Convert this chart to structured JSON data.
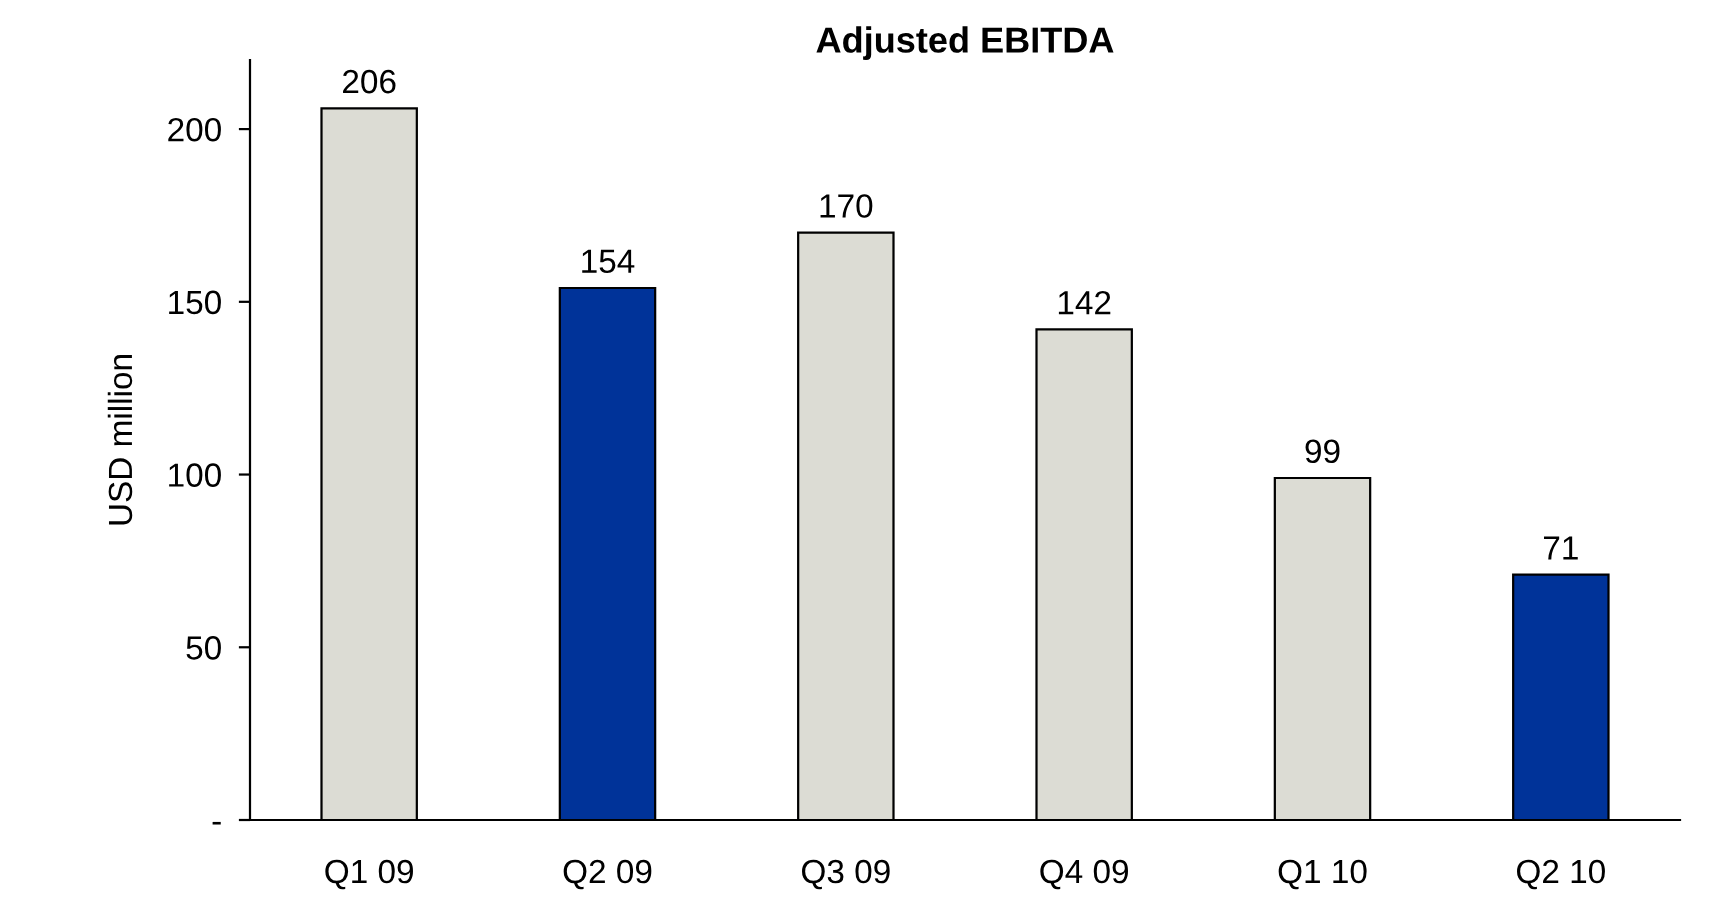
{
  "chart_data": {
    "type": "bar",
    "title": "Adjusted EBITDA",
    "ylabel": "USD million",
    "categories": [
      "Q1 09",
      "Q2 09",
      "Q3 09",
      "Q4 09",
      "Q1 10",
      "Q2 10"
    ],
    "values": [
      206,
      154,
      170,
      142,
      99,
      71
    ],
    "colors": [
      "#dcdcd4",
      "#003399",
      "#dcdcd4",
      "#dcdcd4",
      "#dcdcd4",
      "#003399"
    ],
    "ylim": [
      0,
      220
    ],
    "yticks": [
      {
        "value": 0,
        "label": "-"
      },
      50,
      100,
      150,
      200
    ],
    "data_labels": true,
    "grid": false
  }
}
